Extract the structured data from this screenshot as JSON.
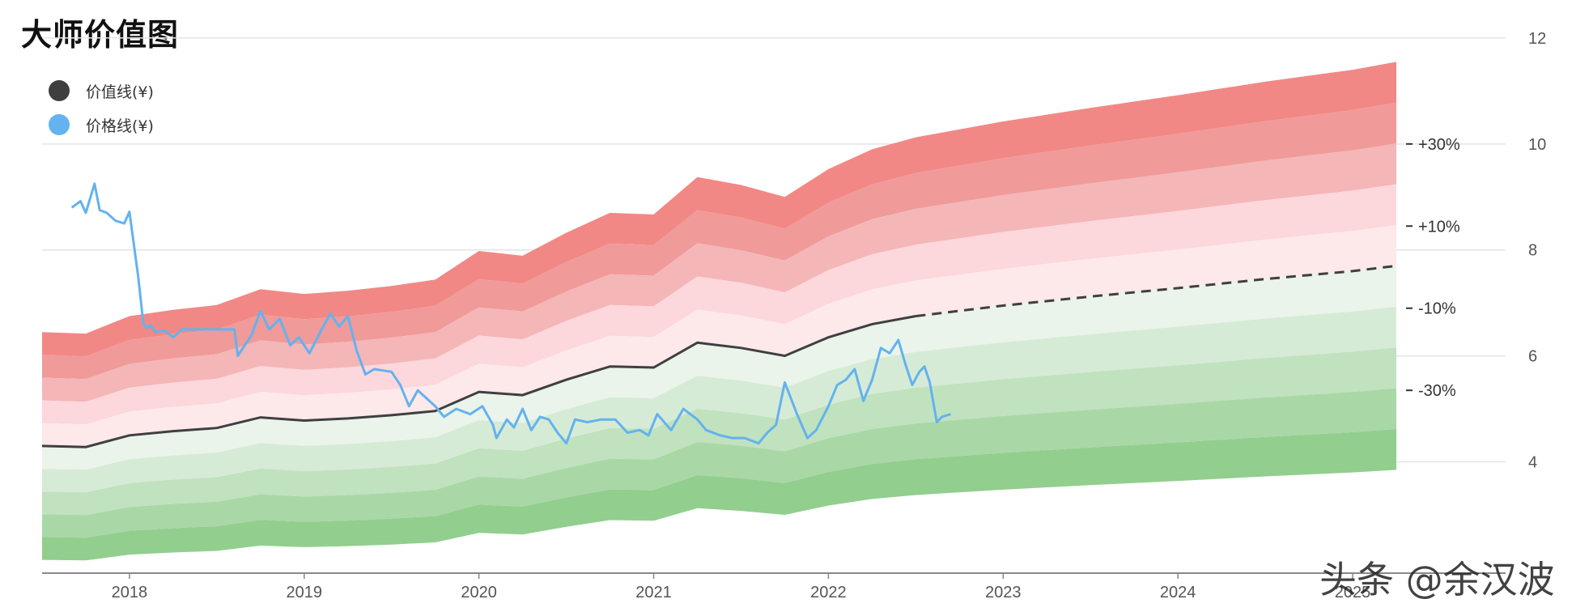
{
  "title": "大师价值图",
  "watermark": "头条 @余汉波",
  "colors": {
    "value_line": "#3f3f3f",
    "price_line": "#64b2ef",
    "bands_red": [
      "#f28885",
      "#f09a9a",
      "#f4b6b7",
      "#fcd7dc",
      "#fde8ea"
    ],
    "bands_green": [
      "#eaf4ea",
      "#d6ebd6",
      "#c0e2be",
      "#a9d8a6",
      "#92ce8e"
    ],
    "grid": "#e4e4e4",
    "axis": "#888888",
    "text": "#555555"
  },
  "chart_data": {
    "type": "area",
    "title": "",
    "xlabel": "",
    "ylabel": "",
    "xlim": [
      2017.5,
      2025.25
    ],
    "ylim": [
      1.9,
      11.8
    ],
    "y_ticks": [
      4,
      6,
      8,
      10,
      12
    ],
    "x_ticks": [
      2018,
      2019,
      2020,
      2021,
      2022,
      2023,
      2024,
      2025
    ],
    "grid": true,
    "legend": {
      "placement": "top-left",
      "entries": [
        {
          "label": "价值线(¥)",
          "color": "#3f3f3f"
        },
        {
          "label": "价格线(¥)",
          "color": "#64b2ef"
        }
      ]
    },
    "band_labels": [
      {
        "text": "+30%",
        "y": 10.0
      },
      {
        "text": "+10%",
        "y": 8.45
      },
      {
        "text": "-10%",
        "y": 6.9
      },
      {
        "text": "-30%",
        "y": 5.35
      }
    ],
    "band_multipliers": [
      1.5,
      1.4,
      1.3,
      1.2,
      1.1,
      1.0,
      0.9,
      0.8,
      0.7,
      0.6,
      0.5
    ],
    "value_line": {
      "name": "价值线(¥)",
      "x": [
        2017.5,
        2017.75,
        2018.0,
        2018.25,
        2018.5,
        2018.75,
        2019.0,
        2019.25,
        2019.5,
        2019.75,
        2020.0,
        2020.25,
        2020.5,
        2020.75,
        2021.0,
        2021.25,
        2021.5,
        2021.75,
        2022.0,
        2022.25,
        2022.5,
        2023.0,
        2023.5,
        2024.0,
        2024.5,
        2025.0,
        2025.25
      ],
      "y": [
        4.3,
        4.28,
        4.5,
        4.58,
        4.64,
        4.84,
        4.78,
        4.82,
        4.88,
        4.96,
        5.32,
        5.26,
        5.55,
        5.8,
        5.78,
        6.25,
        6.15,
        6.0,
        6.35,
        6.6,
        6.75,
        6.95,
        7.12,
        7.28,
        7.45,
        7.6,
        7.7
      ],
      "actual_until": 2022.5
    },
    "price_line": {
      "name": "价格线(¥)",
      "x": [
        2017.67,
        2017.72,
        2017.75,
        2017.8,
        2017.83,
        2017.87,
        2017.92,
        2017.97,
        2018.0,
        2018.05,
        2018.08,
        2018.1,
        2018.12,
        2018.15,
        2018.2,
        2018.25,
        2018.3,
        2018.34,
        2018.6,
        2018.62,
        2018.66,
        2018.7,
        2018.75,
        2018.8,
        2018.86,
        2018.92,
        2018.97,
        2019.03,
        2019.1,
        2019.15,
        2019.2,
        2019.25,
        2019.3,
        2019.35,
        2019.4,
        2019.5,
        2019.55,
        2019.6,
        2019.65,
        2019.7,
        2019.75,
        2019.8,
        2019.87,
        2019.95,
        2020.02,
        2020.08,
        2020.1,
        2020.16,
        2020.2,
        2020.25,
        2020.3,
        2020.35,
        2020.4,
        2020.45,
        2020.5,
        2020.55,
        2020.62,
        2020.7,
        2020.78,
        2020.85,
        2020.92,
        2020.97,
        2021.02,
        2021.1,
        2021.17,
        2021.25,
        2021.3,
        2021.38,
        2021.45,
        2021.52,
        2021.6,
        2021.65,
        2021.7,
        2021.75,
        2021.82,
        2021.88,
        2021.93,
        2022.0,
        2022.05,
        2022.1,
        2022.15,
        2022.2,
        2022.25,
        2022.3,
        2022.35,
        2022.4,
        2022.44,
        2022.48,
        2022.52,
        2022.55,
        2022.58,
        2022.62,
        2022.65,
        2022.7
      ],
      "y": [
        8.8,
        8.92,
        8.7,
        9.25,
        8.75,
        8.7,
        8.55,
        8.5,
        8.72,
        7.5,
        6.6,
        6.52,
        6.58,
        6.45,
        6.48,
        6.35,
        6.5,
        6.5,
        6.5,
        6.0,
        6.2,
        6.4,
        6.85,
        6.5,
        6.7,
        6.2,
        6.35,
        6.05,
        6.5,
        6.8,
        6.55,
        6.75,
        6.1,
        5.65,
        5.75,
        5.7,
        5.45,
        5.05,
        5.35,
        5.2,
        5.05,
        4.85,
        5.0,
        4.9,
        5.05,
        4.7,
        4.45,
        4.8,
        4.65,
        5.0,
        4.6,
        4.85,
        4.8,
        4.55,
        4.35,
        4.8,
        4.75,
        4.8,
        4.8,
        4.55,
        4.6,
        4.5,
        4.9,
        4.6,
        5.0,
        4.8,
        4.6,
        4.5,
        4.45,
        4.45,
        4.35,
        4.55,
        4.7,
        5.5,
        4.9,
        4.45,
        4.6,
        5.05,
        5.45,
        5.55,
        5.75,
        5.15,
        5.55,
        6.15,
        6.05,
        6.3,
        5.85,
        5.45,
        5.7,
        5.8,
        5.5,
        4.75,
        4.85,
        4.9
      ]
    }
  }
}
